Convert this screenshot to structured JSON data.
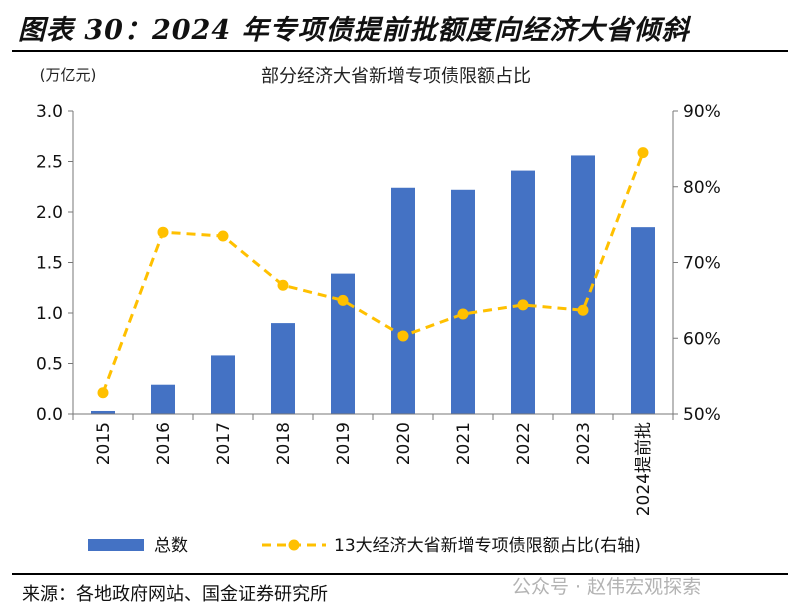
{
  "figure_title": "图表 30：2024 年专项债提前批额度向经济大省倾斜",
  "source": "来源：各地政府网站、国金证券研究所",
  "watermark": "公众号 · 赵伟宏观探索",
  "chart_data": {
    "type": "bar+line",
    "title": "部分经济大省新增专项债限额占比",
    "y_left_unit": "(万亿元)",
    "categories": [
      "2015",
      "2016",
      "2017",
      "2018",
      "2019",
      "2020",
      "2021",
      "2022",
      "2023",
      "2024提前批"
    ],
    "series": [
      {
        "name": "总数",
        "type": "bar",
        "axis": "left",
        "color": "#4472C4",
        "values": [
          0.03,
          0.29,
          0.58,
          0.9,
          1.39,
          2.24,
          2.22,
          2.41,
          2.56,
          1.85
        ]
      },
      {
        "name": "13大经济大省新增专项债限额占比(右轴)",
        "type": "line",
        "style": "dashed",
        "marker": "circle",
        "axis": "right",
        "color": "#FFC000",
        "values": [
          52.8,
          74.0,
          73.5,
          67.0,
          65.0,
          60.3,
          63.2,
          64.4,
          63.7,
          84.5
        ]
      }
    ],
    "y_left": {
      "min": 0,
      "max": 3.0,
      "ticks": [
        "0.0",
        "0.5",
        "1.0",
        "1.5",
        "2.0",
        "2.5",
        "3.0"
      ]
    },
    "y_right": {
      "min": 50,
      "max": 90,
      "ticks": [
        "50%",
        "60%",
        "70%",
        "80%",
        "90%"
      ]
    },
    "legend_position": "bottom",
    "grid": false
  }
}
